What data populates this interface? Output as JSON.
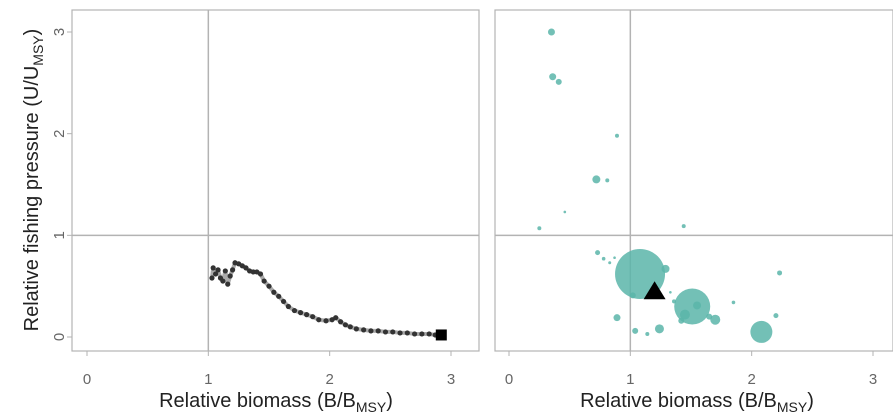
{
  "chart_data": [
    {
      "type": "line",
      "panel": "left",
      "xlabel": "Relative biomass",
      "xlabel_formula": {
        "open": "(B/B",
        "sub": "MSY",
        "close": ")"
      },
      "ylabel": "Relative fishing pressure",
      "ylabel_formula": {
        "open": "(U/U",
        "sub": "MSY",
        "close": ")"
      },
      "xlim": [
        -0.2,
        3.1
      ],
      "ylim": [
        -0.15,
        3.2
      ],
      "x_ticks": [
        0,
        1,
        2,
        3
      ],
      "y_ticks": [
        0,
        1,
        2,
        3
      ],
      "reference_lines": {
        "x": 1,
        "y": 1
      },
      "series": [
        {
          "color": "#333333",
          "trail_color": "#aaaaaa",
          "points": [
            [
              1.03,
              0.58
            ],
            [
              1.04,
              0.68
            ],
            [
              1.06,
              0.62
            ],
            [
              1.08,
              0.66
            ],
            [
              1.1,
              0.58
            ],
            [
              1.12,
              0.55
            ],
            [
              1.14,
              0.65
            ],
            [
              1.16,
              0.52
            ],
            [
              1.18,
              0.6
            ],
            [
              1.2,
              0.66
            ],
            [
              1.22,
              0.73
            ],
            [
              1.25,
              0.72
            ],
            [
              1.28,
              0.7
            ],
            [
              1.31,
              0.68
            ],
            [
              1.34,
              0.65
            ],
            [
              1.37,
              0.64
            ],
            [
              1.4,
              0.64
            ],
            [
              1.43,
              0.62
            ],
            [
              1.46,
              0.55
            ],
            [
              1.5,
              0.5
            ],
            [
              1.54,
              0.44
            ],
            [
              1.58,
              0.4
            ],
            [
              1.62,
              0.35
            ],
            [
              1.66,
              0.3
            ],
            [
              1.71,
              0.26
            ],
            [
              1.76,
              0.24
            ],
            [
              1.81,
              0.22
            ],
            [
              1.86,
              0.2
            ],
            [
              1.91,
              0.17
            ],
            [
              1.97,
              0.16
            ],
            [
              2.02,
              0.17
            ],
            [
              2.05,
              0.19
            ],
            [
              2.09,
              0.15
            ],
            [
              2.13,
              0.12
            ],
            [
              2.17,
              0.1
            ],
            [
              2.22,
              0.08
            ],
            [
              2.28,
              0.07
            ],
            [
              2.34,
              0.06
            ],
            [
              2.4,
              0.06
            ],
            [
              2.46,
              0.05
            ],
            [
              2.52,
              0.05
            ],
            [
              2.58,
              0.04
            ],
            [
              2.64,
              0.04
            ],
            [
              2.7,
              0.03
            ],
            [
              2.76,
              0.03
            ],
            [
              2.82,
              0.03
            ],
            [
              2.87,
              0.02
            ]
          ],
          "end_marker": {
            "x": 2.92,
            "y": 0.02,
            "shape": "square"
          }
        }
      ]
    },
    {
      "type": "scatter",
      "panel": "right",
      "xlabel": "Relative biomass",
      "xlabel_formula": {
        "open": "(B/B",
        "sub": "MSY",
        "close": ")"
      },
      "xlim": [
        -0.2,
        3.1
      ],
      "ylim": [
        -0.15,
        3.2
      ],
      "x_ticks": [
        0,
        1,
        2,
        3
      ],
      "reference_lines": {
        "x": 1,
        "y": 1
      },
      "point_color": "#5bb5a9",
      "points": [
        {
          "x": 0.35,
          "y": 3.0,
          "size": 3.5
        },
        {
          "x": 0.36,
          "y": 2.56,
          "size": 3.5
        },
        {
          "x": 0.41,
          "y": 2.51,
          "size": 3
        },
        {
          "x": 0.89,
          "y": 1.98,
          "size": 2
        },
        {
          "x": 0.72,
          "y": 1.55,
          "size": 4
        },
        {
          "x": 0.81,
          "y": 1.54,
          "size": 2
        },
        {
          "x": 0.46,
          "y": 1.23,
          "size": 1.3
        },
        {
          "x": 0.25,
          "y": 1.07,
          "size": 2
        },
        {
          "x": 1.44,
          "y": 1.09,
          "size": 2
        },
        {
          "x": 0.73,
          "y": 0.83,
          "size": 2.5
        },
        {
          "x": 0.78,
          "y": 0.77,
          "size": 1.8
        },
        {
          "x": 0.83,
          "y": 0.73,
          "size": 1.5
        },
        {
          "x": 0.87,
          "y": 0.78,
          "size": 1.3
        },
        {
          "x": 1.08,
          "y": 0.62,
          "size": 25
        },
        {
          "x": 1.29,
          "y": 0.67,
          "size": 4
        },
        {
          "x": 1.33,
          "y": 0.44,
          "size": 1.3
        },
        {
          "x": 1.02,
          "y": 0.41,
          "size": 3
        },
        {
          "x": 1.36,
          "y": 0.35,
          "size": 2
        },
        {
          "x": 1.51,
          "y": 0.3,
          "size": 18
        },
        {
          "x": 1.55,
          "y": 0.31,
          "size": 4
        },
        {
          "x": 1.45,
          "y": 0.22,
          "size": 5
        },
        {
          "x": 1.42,
          "y": 0.16,
          "size": 3
        },
        {
          "x": 1.65,
          "y": 0.2,
          "size": 3
        },
        {
          "x": 1.7,
          "y": 0.17,
          "size": 5
        },
        {
          "x": 0.89,
          "y": 0.19,
          "size": 3.5
        },
        {
          "x": 1.24,
          "y": 0.08,
          "size": 4.5
        },
        {
          "x": 1.04,
          "y": 0.06,
          "size": 3
        },
        {
          "x": 1.14,
          "y": 0.03,
          "size": 2
        },
        {
          "x": 1.85,
          "y": 0.34,
          "size": 1.8
        },
        {
          "x": 2.23,
          "y": 0.63,
          "size": 2.5
        },
        {
          "x": 2.2,
          "y": 0.21,
          "size": 2.5
        },
        {
          "x": 2.08,
          "y": 0.05,
          "size": 11
        }
      ],
      "highlight": {
        "x": 1.2,
        "y": 0.45,
        "shape": "triangle",
        "color": "#000000"
      }
    }
  ]
}
